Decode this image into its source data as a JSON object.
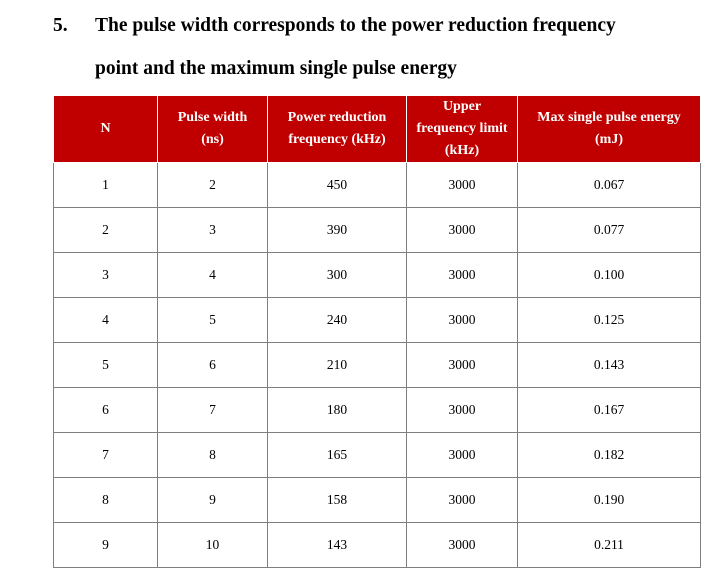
{
  "heading": {
    "number": "5.",
    "line1": "The pulse width corresponds to the power reduction frequency",
    "line2": "point and the maximum single pulse energy"
  },
  "table": {
    "columns": [
      {
        "line1": "N",
        "line2": ""
      },
      {
        "line1": "Pulse width",
        "line2": "(ns)"
      },
      {
        "line1": "Power reduction",
        "line2": "frequency (kHz)"
      },
      {
        "line1": "Upper",
        "line2": "frequency limit",
        "line3": "(kHz)"
      },
      {
        "line1": "Max single pulse energy",
        "line2": "(mJ)"
      }
    ],
    "rows": [
      [
        "1",
        "2",
        "450",
        "3000",
        "0.067"
      ],
      [
        "2",
        "3",
        "390",
        "3000",
        "0.077"
      ],
      [
        "3",
        "4",
        "300",
        "3000",
        "0.100"
      ],
      [
        "4",
        "5",
        "240",
        "3000",
        "0.125"
      ],
      [
        "5",
        "6",
        "210",
        "3000",
        "0.143"
      ],
      [
        "6",
        "7",
        "180",
        "3000",
        "0.167"
      ],
      [
        "7",
        "8",
        "165",
        "3000",
        "0.182"
      ],
      [
        "8",
        "9",
        "158",
        "3000",
        "0.190"
      ],
      [
        "9",
        "10",
        "143",
        "3000",
        "0.211"
      ]
    ]
  },
  "colors": {
    "header_background": "#c00000",
    "header_text": "#ffffff",
    "grid_lines": "#7f7f7f"
  }
}
